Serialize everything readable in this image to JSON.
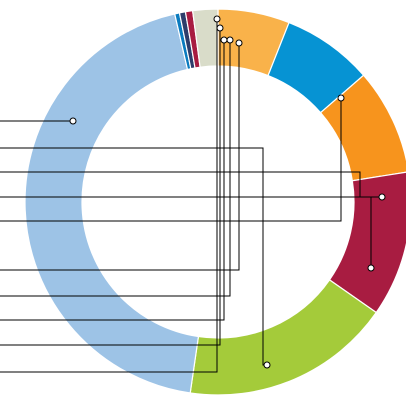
{
  "chart_data": {
    "type": "pie",
    "variant": "donut",
    "title": "",
    "legend": "none",
    "slice_colors": [
      "#f9b24a",
      "#0693d3",
      "#f7941d",
      "#a81c41",
      "#a4cb3a",
      "#9dc3e6",
      "#0a7bbf",
      "#2e3d6b",
      "#a81c41",
      "#d9dcc9"
    ],
    "slices": [
      {
        "value": 6.0
      },
      {
        "value": 7.6
      },
      {
        "value": 8.9
      },
      {
        "value": 12.2
      },
      {
        "value": 17.6
      },
      {
        "value": 44.1
      },
      {
        "value": 0.4
      },
      {
        "value": 0.5
      },
      {
        "value": 0.6
      },
      {
        "value": 2.1
      }
    ]
  }
}
